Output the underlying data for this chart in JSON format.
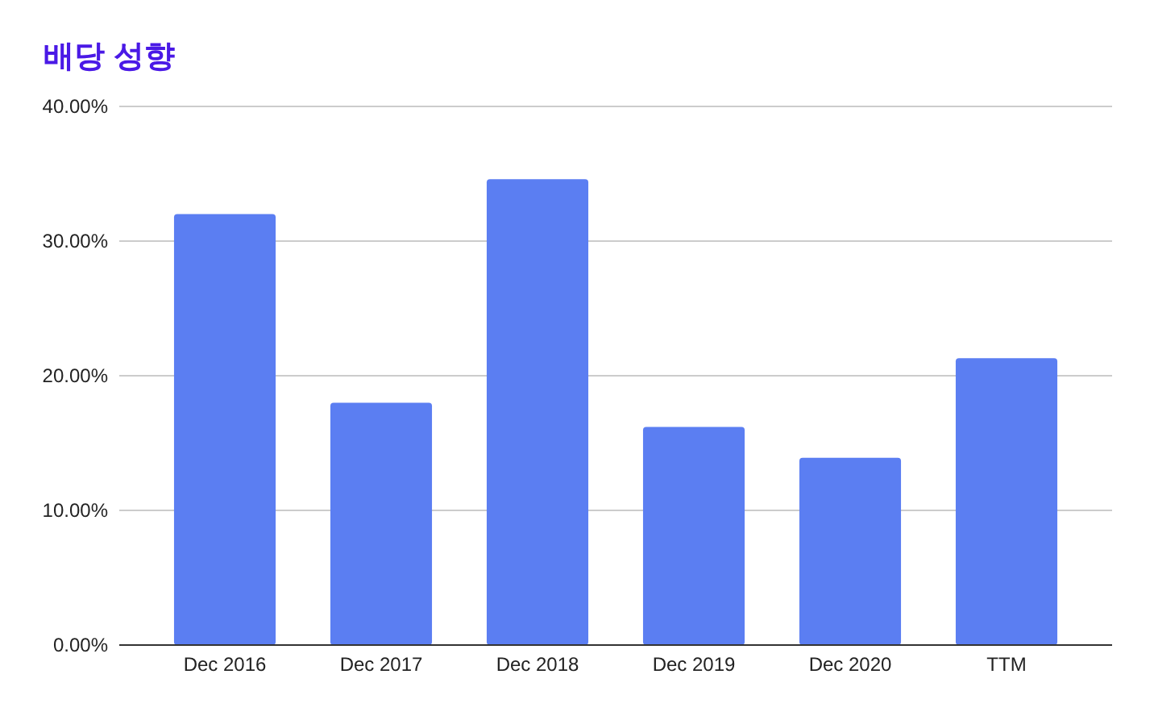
{
  "chart_data": {
    "type": "bar",
    "title": "배당 성향",
    "categories": [
      "Dec 2016",
      "Dec 2017",
      "Dec 2018",
      "Dec 2019",
      "Dec 2020",
      "TTM"
    ],
    "series": [
      {
        "color": "#5b7ef2",
        "values": [
          32.0,
          18.0,
          34.6,
          16.2,
          13.9,
          21.3
        ]
      }
    ],
    "ylim": [
      0,
      40
    ],
    "yticks": [
      {
        "value": 0,
        "label": "0.00%"
      },
      {
        "value": 10,
        "label": "10.00%"
      },
      {
        "value": 20,
        "label": "20.00%"
      },
      {
        "value": 30,
        "label": "30.00%"
      },
      {
        "value": 40,
        "label": "40.00%"
      }
    ],
    "grid": "y"
  }
}
